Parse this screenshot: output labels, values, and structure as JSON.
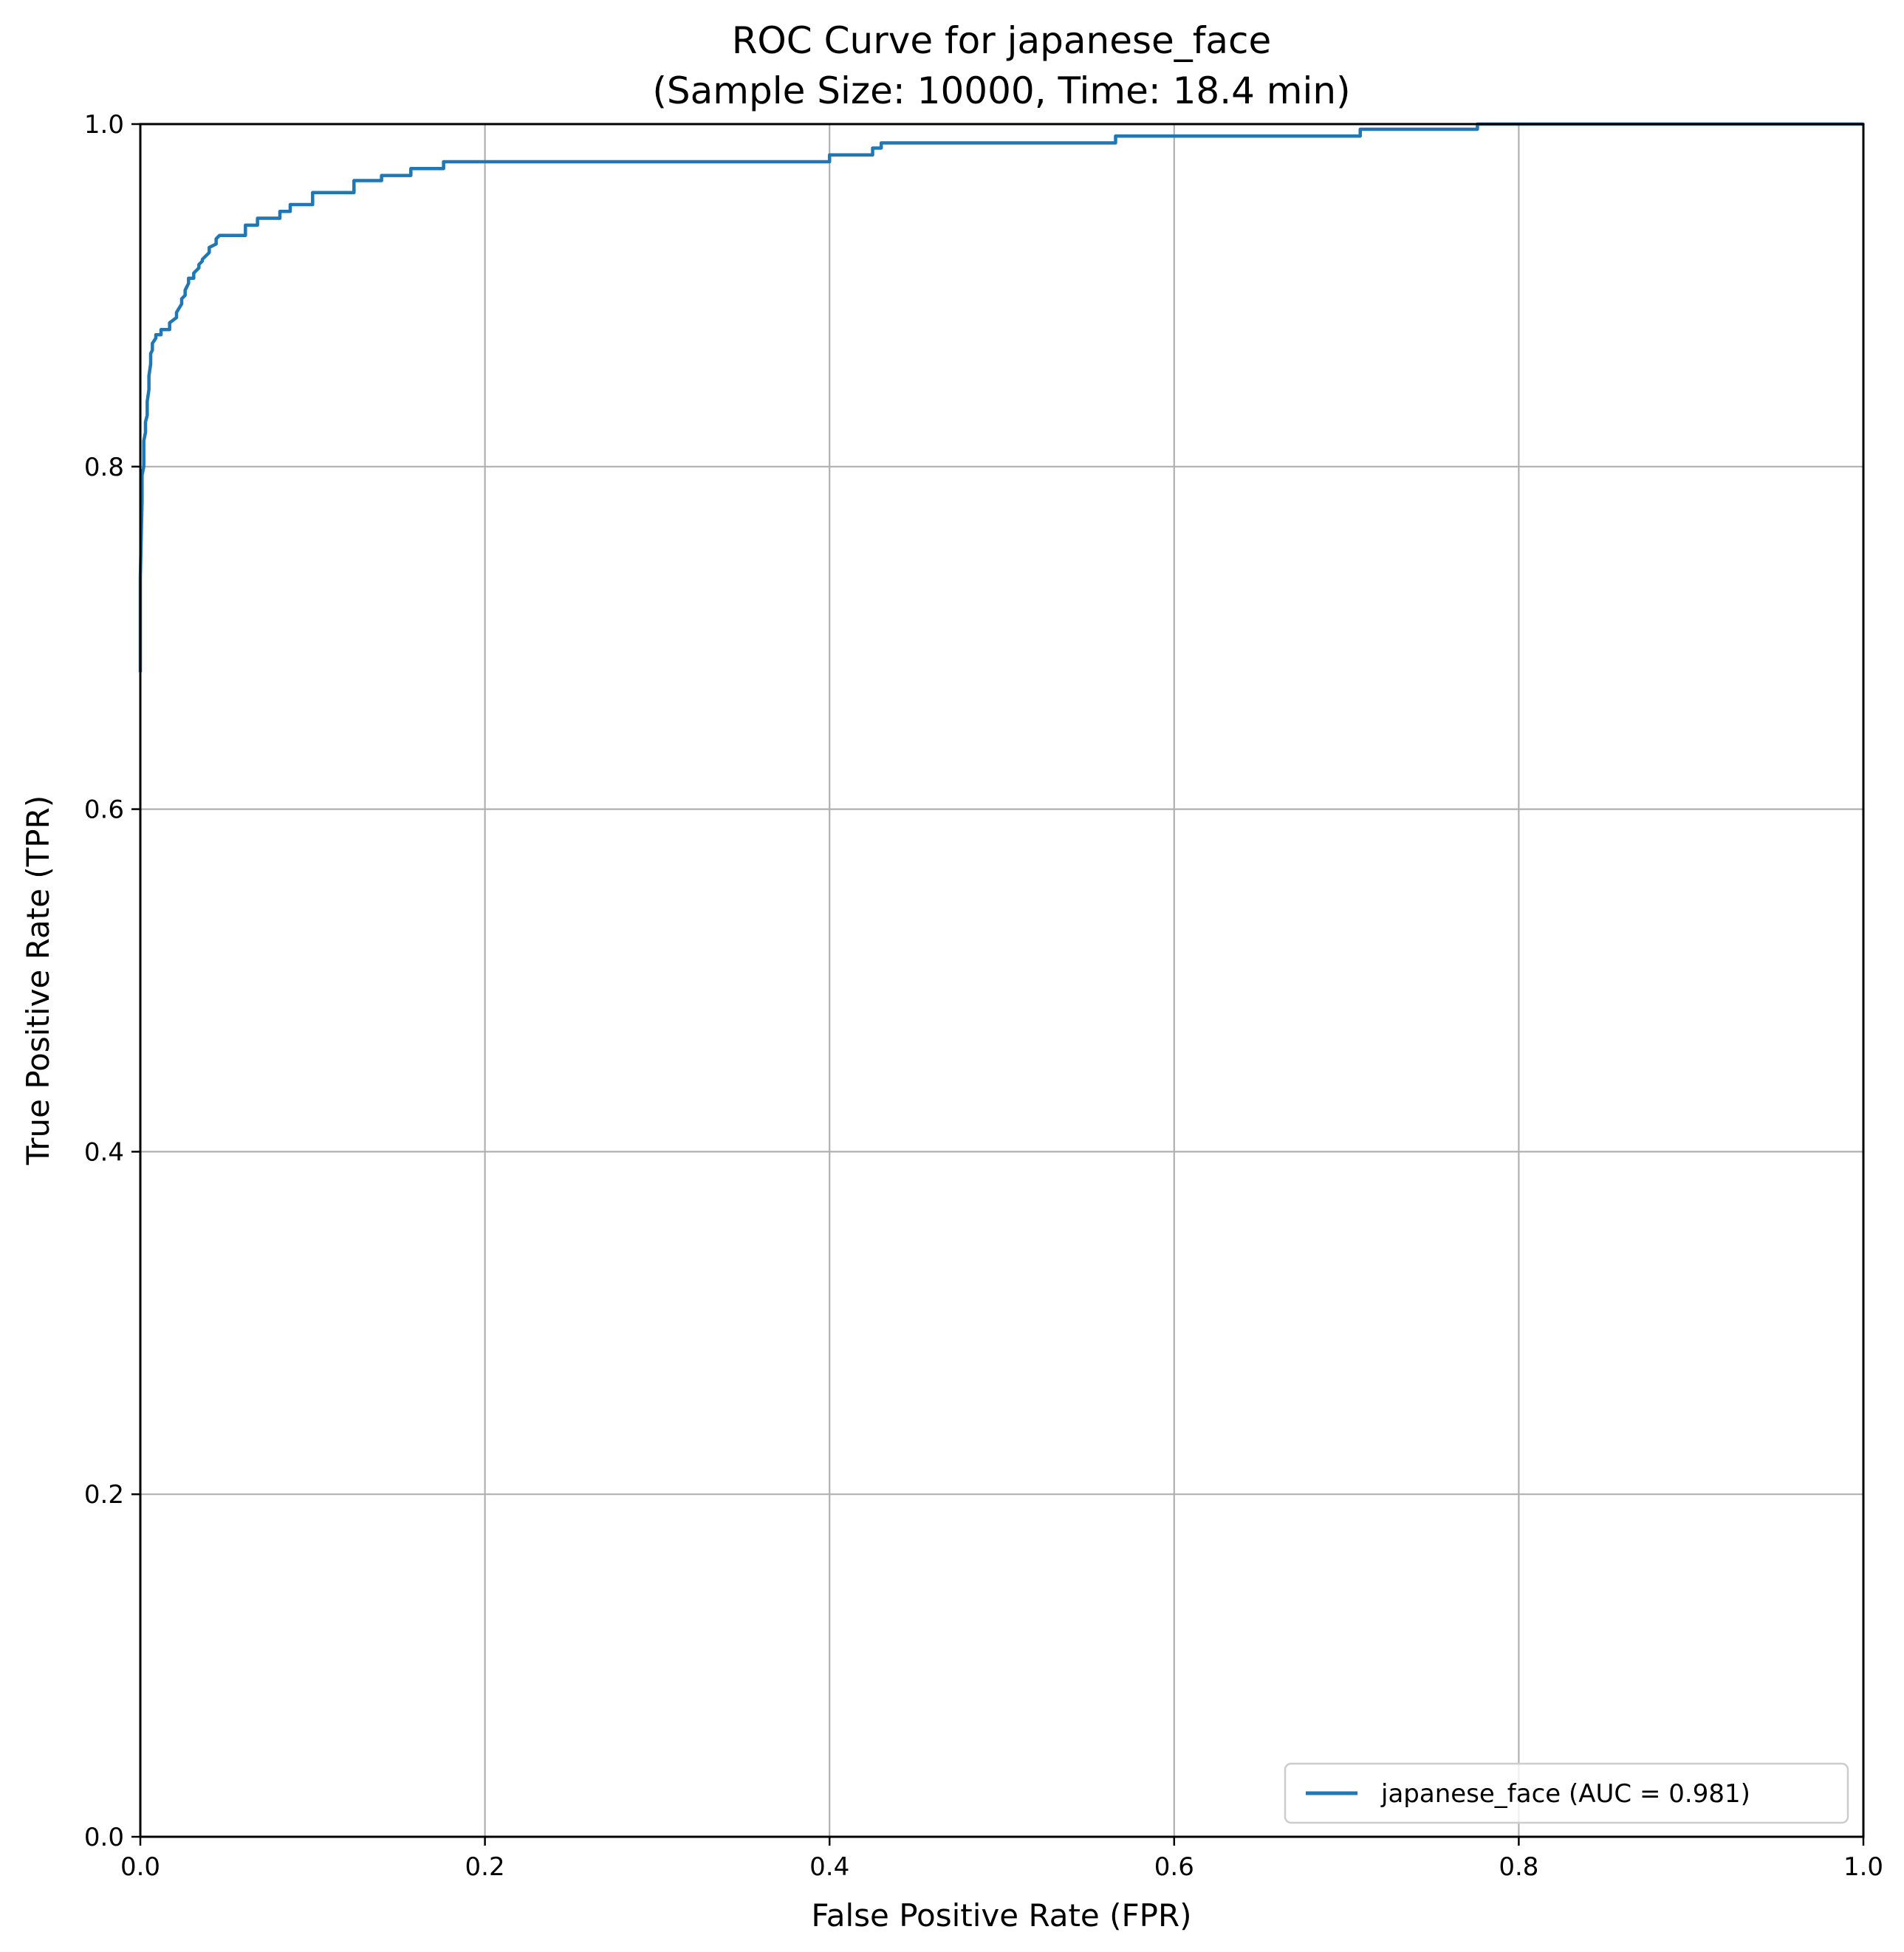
{
  "chart_data": {
    "type": "line",
    "title": "ROC Curve for japanese_face",
    "subtitle": "(Sample Size: 10000, Time: 18.4 min)",
    "xlabel": "False Positive Rate (FPR)",
    "ylabel": "True Positive Rate (TPR)",
    "xlim": [
      0,
      1
    ],
    "ylim": [
      0,
      1
    ],
    "xticks": [
      "0.0",
      "0.2",
      "0.4",
      "0.6",
      "0.8",
      "1.0"
    ],
    "yticks": [
      "0.0",
      "0.2",
      "0.4",
      "0.6",
      "0.8",
      "1.0"
    ],
    "grid": true,
    "legend_position": "lower-right",
    "series": [
      {
        "name": "japanese_face (AUC = 0.981)",
        "color": "#1f77b4",
        "x": [
          0.0,
          0.0,
          0.001,
          0.001,
          0.002,
          0.002,
          0.003,
          0.003,
          0.004,
          0.004,
          0.005,
          0.005,
          0.006,
          0.006,
          0.007,
          0.007,
          0.009,
          0.009,
          0.012,
          0.012,
          0.017,
          0.017,
          0.021,
          0.021,
          0.024,
          0.024,
          0.026,
          0.026,
          0.028,
          0.028,
          0.031,
          0.031,
          0.034,
          0.034,
          0.036,
          0.036,
          0.04,
          0.04,
          0.044,
          0.044,
          0.046,
          0.046,
          0.061,
          0.061,
          0.068,
          0.068,
          0.081,
          0.081,
          0.087,
          0.087,
          0.1,
          0.1,
          0.124,
          0.124,
          0.14,
          0.14,
          0.157,
          0.157,
          0.176,
          0.176,
          0.4,
          0.4,
          0.425,
          0.425,
          0.43,
          0.43,
          0.566,
          0.566,
          0.708,
          0.708,
          0.776,
          0.776,
          1.0
        ],
        "y": [
          0.68,
          0.735,
          0.78,
          0.795,
          0.8,
          0.815,
          0.82,
          0.826,
          0.83,
          0.838,
          0.845,
          0.853,
          0.86,
          0.866,
          0.868,
          0.872,
          0.875,
          0.877,
          0.877,
          0.88,
          0.88,
          0.884,
          0.887,
          0.89,
          0.895,
          0.898,
          0.9,
          0.903,
          0.907,
          0.91,
          0.91,
          0.913,
          0.916,
          0.918,
          0.92,
          0.921,
          0.925,
          0.928,
          0.93,
          0.933,
          0.935,
          0.935,
          0.935,
          0.941,
          0.941,
          0.945,
          0.945,
          0.949,
          0.949,
          0.953,
          0.953,
          0.96,
          0.96,
          0.967,
          0.967,
          0.97,
          0.97,
          0.974,
          0.974,
          0.978,
          0.978,
          0.982,
          0.982,
          0.986,
          0.986,
          0.989,
          0.989,
          0.993,
          0.993,
          0.997,
          0.997,
          1.0,
          1.0
        ]
      }
    ]
  }
}
